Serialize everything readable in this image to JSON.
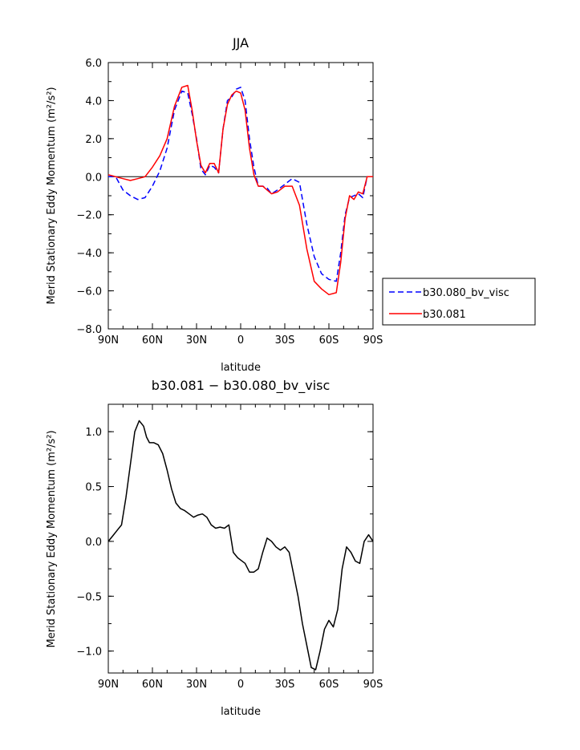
{
  "chart_data": [
    {
      "type": "line",
      "title": "JJA",
      "xlabel": "latitude",
      "ylabel": "Merid Stationary Eddy Momentum (m²/s²)",
      "x_ticks": [
        "90N",
        "60N",
        "30N",
        "0",
        "30S",
        "60S",
        "90S"
      ],
      "x_tick_values": [
        90,
        60,
        30,
        0,
        -30,
        -60,
        -90
      ],
      "y_ticks": [
        "6.0",
        "4.0",
        "2.0",
        "0.0",
        "−2.0",
        "−4.0",
        "−6.0",
        "−8.0"
      ],
      "y_tick_values": [
        6,
        4,
        2,
        0,
        -2,
        -4,
        -6,
        -8
      ],
      "xlim": [
        90,
        -90
      ],
      "ylim": [
        -8,
        6
      ],
      "zero_line": true,
      "legend_position": "right, outside plot",
      "series": [
        {
          "name": "b30.080_bv_visc",
          "color": "#0000ff",
          "dash": "dashed",
          "x": [
            90,
            85,
            80,
            75,
            70,
            65,
            60,
            55,
            50,
            45,
            40,
            36,
            33,
            30,
            27,
            24,
            21,
            18,
            15,
            12,
            9,
            6,
            3,
            0,
            -3,
            -6,
            -9,
            -12,
            -15,
            -18,
            -21,
            -25,
            -30,
            -35,
            -40,
            -45,
            -50,
            -55,
            -60,
            -65,
            -68,
            -71,
            -74,
            -77,
            -80,
            -83,
            -86,
            -90
          ],
          "values": [
            0.0,
            0.0,
            -0.7,
            -1.0,
            -1.2,
            -1.1,
            -0.5,
            0.3,
            1.5,
            3.5,
            4.5,
            4.4,
            3.3,
            2.0,
            0.4,
            0.1,
            0.6,
            0.5,
            0.2,
            2.5,
            4.0,
            4.2,
            4.6,
            4.7,
            4.0,
            2.0,
            0.5,
            -0.5,
            -0.5,
            -0.6,
            -0.9,
            -0.7,
            -0.4,
            -0.1,
            -0.3,
            -2.5,
            -4.2,
            -5.1,
            -5.4,
            -5.5,
            -4.0,
            -2.0,
            -1.1,
            -1.0,
            -0.9,
            -1.1,
            0.0,
            0.0
          ]
        },
        {
          "name": "b30.081",
          "color": "#ff0000",
          "dash": "solid",
          "x": [
            90,
            85,
            80,
            75,
            70,
            65,
            60,
            55,
            50,
            45,
            40,
            36,
            33,
            30,
            27,
            24,
            21,
            18,
            15,
            12,
            9,
            6,
            3,
            0,
            -3,
            -6,
            -9,
            -12,
            -15,
            -18,
            -21,
            -25,
            -30,
            -35,
            -40,
            -45,
            -50,
            -55,
            -60,
            -65,
            -68,
            -71,
            -74,
            -77,
            -80,
            -83,
            -86,
            -90
          ],
          "values": [
            0.1,
            0.0,
            -0.1,
            -0.2,
            -0.1,
            0.0,
            0.5,
            1.1,
            2.0,
            3.7,
            4.7,
            4.8,
            3.5,
            1.9,
            0.6,
            0.2,
            0.7,
            0.7,
            0.2,
            2.5,
            3.8,
            4.3,
            4.5,
            4.4,
            3.5,
            1.5,
            0.1,
            -0.5,
            -0.5,
            -0.7,
            -0.9,
            -0.8,
            -0.5,
            -0.5,
            -1.5,
            -3.8,
            -5.5,
            -5.9,
            -6.2,
            -6.1,
            -4.5,
            -2.2,
            -1.0,
            -1.2,
            -0.8,
            -0.9,
            0.0,
            0.0
          ]
        }
      ]
    },
    {
      "type": "line",
      "title": "b30.081 − b30.080_bv_visc",
      "xlabel": "latitude",
      "ylabel": "Merid Stationary Eddy Momentum (m²/s²)",
      "x_ticks": [
        "90N",
        "60N",
        "30N",
        "0",
        "30S",
        "60S",
        "90S"
      ],
      "x_tick_values": [
        90,
        60,
        30,
        0,
        -30,
        -60,
        -90
      ],
      "y_ticks": [
        "1.0",
        "0.5",
        "0.0",
        "−0.5",
        "−1.0"
      ],
      "y_tick_values": [
        1.0,
        0.5,
        0.0,
        -0.5,
        -1.0
      ],
      "xlim": [
        90,
        -90
      ],
      "ylim": [
        -1.2,
        1.25
      ],
      "zero_line": false,
      "series": [
        {
          "color": "#000000",
          "dash": "solid",
          "x": [
            90,
            87,
            84,
            81,
            78,
            75,
            72,
            69,
            66,
            64,
            62,
            59,
            56,
            53,
            50,
            47,
            44,
            41,
            38,
            35,
            32,
            29,
            26,
            23,
            20,
            17,
            14,
            11,
            8,
            5,
            2,
            0,
            -3,
            -6,
            -9,
            -12,
            -15,
            -18,
            -21,
            -24,
            -27,
            -30,
            -33,
            -36,
            -39,
            -42,
            -45,
            -48,
            -51,
            -54,
            -57,
            -60,
            -63,
            -66,
            -69,
            -72,
            -75,
            -78,
            -81,
            -84,
            -87,
            -90
          ],
          "values": [
            0.0,
            0.05,
            0.1,
            0.15,
            0.4,
            0.7,
            1.0,
            1.1,
            1.05,
            0.95,
            0.9,
            0.9,
            0.88,
            0.8,
            0.65,
            0.48,
            0.35,
            0.3,
            0.28,
            0.25,
            0.22,
            0.24,
            0.25,
            0.22,
            0.15,
            0.12,
            0.13,
            0.12,
            0.15,
            -0.1,
            -0.15,
            -0.17,
            -0.2,
            -0.28,
            -0.28,
            -0.25,
            -0.1,
            0.03,
            0.0,
            -0.05,
            -0.08,
            -0.05,
            -0.1,
            -0.3,
            -0.5,
            -0.75,
            -0.95,
            -1.15,
            -1.17,
            -1.0,
            -0.8,
            -0.72,
            -0.78,
            -0.62,
            -0.25,
            -0.05,
            -0.1,
            -0.18,
            -0.2,
            0.0,
            0.06,
            0.0
          ]
        }
      ]
    },
    {
      "legend": [
        {
          "label": "b30.080_bv_visc",
          "color": "#0000ff",
          "dash": "dashed"
        },
        {
          "label": "b30.081",
          "color": "#ff0000",
          "dash": "solid"
        }
      ]
    }
  ]
}
